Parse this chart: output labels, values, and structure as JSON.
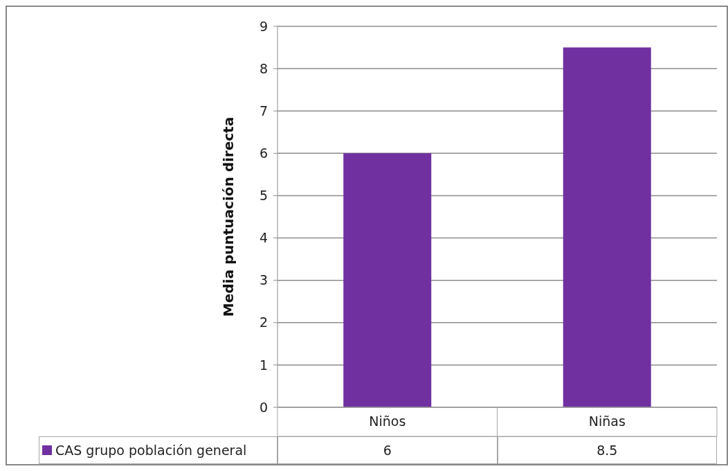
{
  "chart_data": {
    "type": "bar",
    "ylabel": "Media puntuación directa",
    "categories": [
      "Niños",
      "Niñas"
    ],
    "series": [
      {
        "name": "CAS grupo población general",
        "color": "#7030a0",
        "values": [
          6,
          8.5
        ]
      }
    ],
    "ylim": [
      0,
      9
    ],
    "yticks": [
      0,
      1,
      2,
      3,
      4,
      5,
      6,
      7,
      8,
      9
    ],
    "grid": "y",
    "data_labels": true
  }
}
